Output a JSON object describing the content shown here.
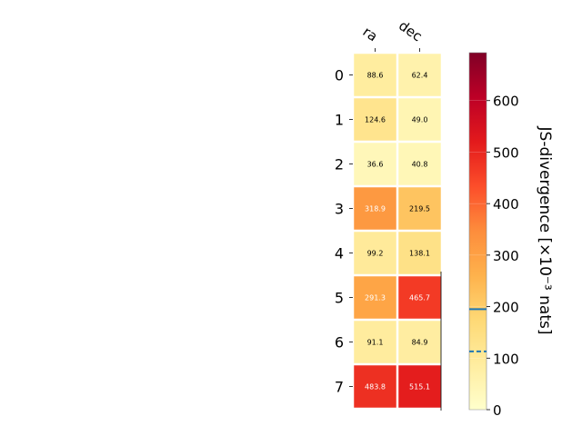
{
  "chart_data": {
    "type": "heatmap",
    "columns": [
      "ra",
      "dec"
    ],
    "rows": [
      "0",
      "1",
      "2",
      "3",
      "4",
      "5",
      "6",
      "7"
    ],
    "values": [
      [
        88.6,
        62.4
      ],
      [
        124.6,
        49.0
      ],
      [
        36.6,
        40.8
      ],
      [
        318.9,
        219.5
      ],
      [
        99.2,
        138.1
      ],
      [
        291.3,
        465.7
      ],
      [
        91.1,
        84.9
      ],
      [
        483.8,
        515.1
      ]
    ],
    "value_labels": [
      [
        "88.6",
        "62.4"
      ],
      [
        "124.6",
        "49.0"
      ],
      [
        "36.6",
        "40.8"
      ],
      [
        "318.9",
        "219.5"
      ],
      [
        "99.2",
        "138.1"
      ],
      [
        "291.3",
        "465.7"
      ],
      [
        "91.1",
        "84.9"
      ],
      [
        "483.8",
        "515.1"
      ]
    ],
    "colorbar": {
      "label": "JS-divergence [×10⁻³ nats]",
      "range": [
        0,
        693
      ],
      "ticks": [
        0,
        100,
        200,
        300,
        400,
        500,
        600
      ],
      "colormap": "YlOrRd",
      "markers": [
        {
          "value": 195,
          "style": "solid",
          "color": "#1f77b4"
        },
        {
          "value": 113,
          "style": "dashed",
          "color": "#1f77b4"
        }
      ]
    },
    "grid": false,
    "legend": "none"
  }
}
